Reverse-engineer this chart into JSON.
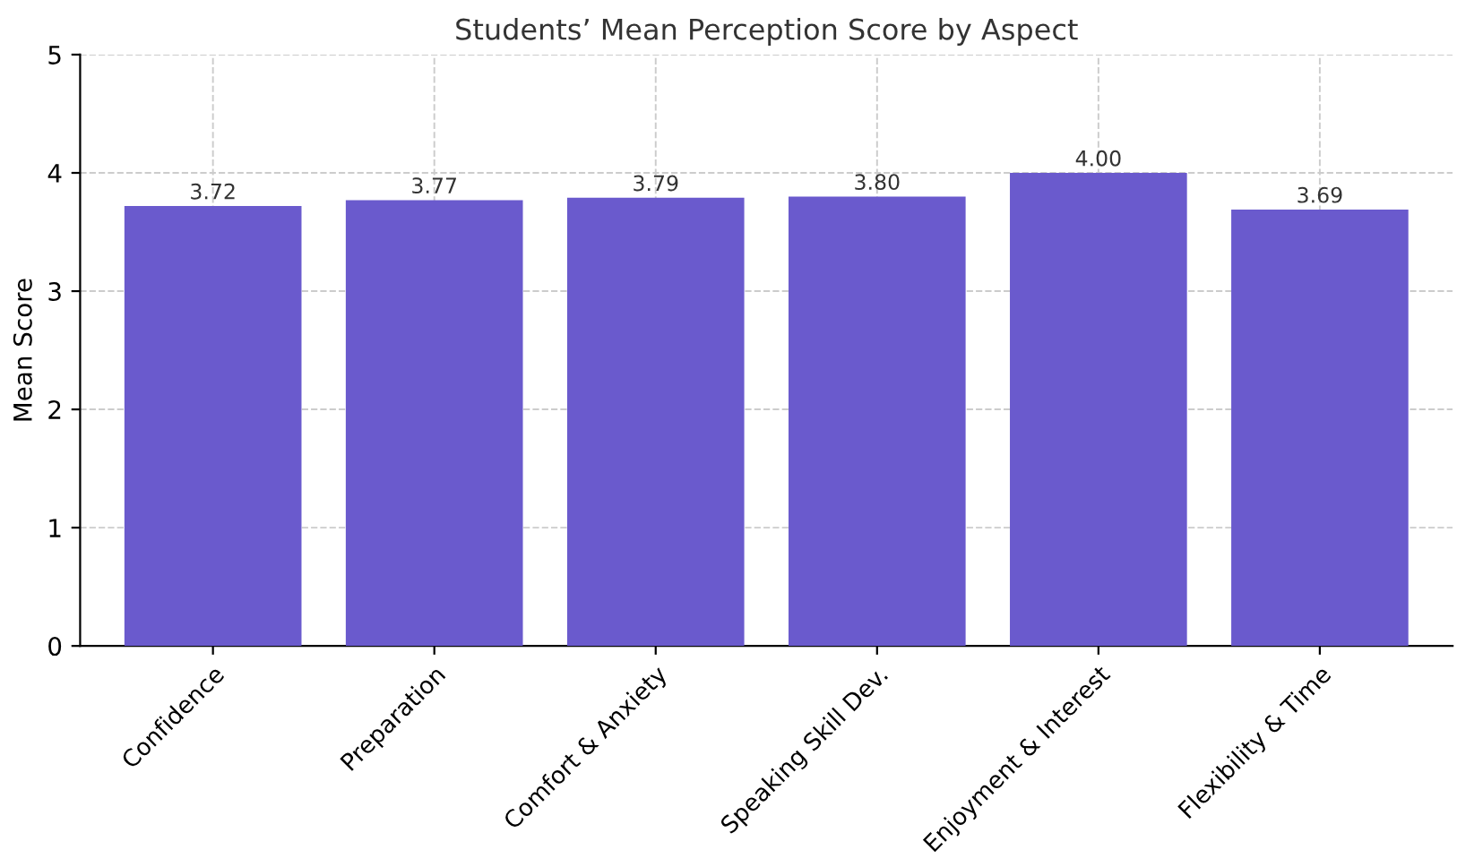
{
  "chart_data": {
    "type": "bar",
    "title": "Students’ Mean Perception Score by Aspect",
    "ylabel": "Mean Score",
    "categories": [
      "Confidence",
      "Preparation",
      "Comfort & Anxiety",
      "Speaking Skill Dev.",
      "Enjoyment & Interest",
      "Flexibility & Time"
    ],
    "values": [
      3.72,
      3.77,
      3.79,
      3.8,
      4.0,
      3.69
    ],
    "value_labels": [
      "3.72",
      "3.77",
      "3.79",
      "3.80",
      "4.00",
      "3.69"
    ],
    "color": "#6a5acd",
    "ylim": [
      0,
      5
    ],
    "yticks": [
      0,
      1,
      2,
      3,
      4,
      5
    ],
    "grid": true
  }
}
